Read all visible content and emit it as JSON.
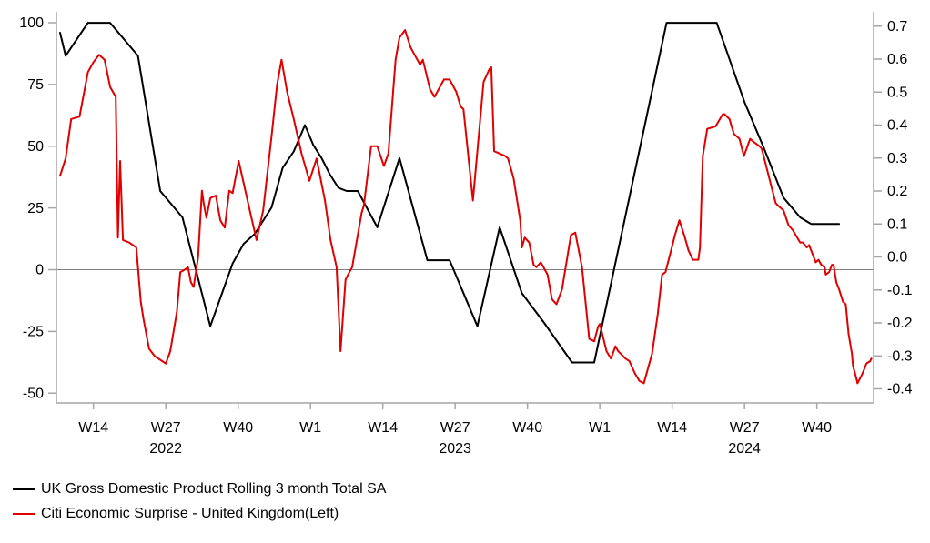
{
  "chart_data": {
    "type": "line",
    "title": "",
    "x_axis": {
      "tick_labels": [
        "W14",
        "W27",
        "W40",
        "W1",
        "W14",
        "W27",
        "W40",
        "W1",
        "W14",
        "W27",
        "W40"
      ],
      "tick_weeks": [
        6,
        19,
        32,
        45,
        58,
        71,
        84,
        97,
        110,
        123,
        136
      ],
      "year_labels": [
        {
          "text": "2022",
          "week": 19
        },
        {
          "text": "2023",
          "week": 71
        },
        {
          "text": "2024",
          "week": 123
        }
      ]
    },
    "left_axis": {
      "tick_values": [
        100,
        75,
        50,
        25,
        0,
        -25,
        -50
      ],
      "range": [
        -54,
        104
      ]
    },
    "right_axis": {
      "tick_labels": [
        "0.7",
        "0.6",
        "0.5",
        "0.4",
        "0.3",
        "0.2",
        "0.1",
        "0.0",
        "-0.1",
        "-0.2",
        "-0.3",
        "-0.4"
      ],
      "range": [
        -0.44,
        0.74
      ]
    },
    "zero_line": true,
    "legend_position": "bottom-left",
    "series": [
      {
        "name": "UK Gross Domestic Product Rolling 3 month Total SA",
        "color": "#000000",
        "axis": "right",
        "points": [
          [
            0,
            0.68
          ],
          [
            1,
            0.61
          ],
          [
            5,
            0.71
          ],
          [
            9,
            0.71
          ],
          [
            12,
            0.65
          ],
          [
            14,
            0.61
          ],
          [
            18,
            0.2
          ],
          [
            22,
            0.12
          ],
          [
            27,
            -0.21
          ],
          [
            31,
            -0.02
          ],
          [
            33,
            0.04
          ],
          [
            35,
            0.07
          ],
          [
            38,
            0.15
          ],
          [
            40,
            0.27
          ],
          [
            42,
            0.32
          ],
          [
            44,
            0.4
          ],
          [
            45.5,
            0.34
          ],
          [
            47,
            0.3
          ],
          [
            48.5,
            0.25
          ],
          [
            50,
            0.21
          ],
          [
            51.5,
            0.2
          ],
          [
            53.5,
            0.2
          ],
          [
            57,
            0.09
          ],
          [
            61,
            0.3
          ],
          [
            66,
            -0.01
          ],
          [
            70,
            -0.01
          ],
          [
            75,
            -0.21
          ],
          [
            79,
            0.09
          ],
          [
            83,
            -0.11
          ],
          [
            87,
            -0.2
          ],
          [
            92,
            -0.32
          ],
          [
            96,
            -0.32
          ],
          [
            109,
            0.71
          ],
          [
            118,
            0.71
          ],
          [
            123,
            0.47
          ],
          [
            126.5,
            0.33
          ],
          [
            130,
            0.18
          ],
          [
            133,
            0.12
          ],
          [
            135,
            0.1
          ],
          [
            140,
            0.1
          ]
        ]
      },
      {
        "name": "Citi Economic Surprise - United Kingdom(Left)",
        "color": "#e00000",
        "axis": "left",
        "points": [
          [
            0,
            38
          ],
          [
            1,
            45
          ],
          [
            2,
            61
          ],
          [
            3.5,
            62
          ],
          [
            5,
            80
          ],
          [
            6,
            84
          ],
          [
            7,
            87
          ],
          [
            8,
            85
          ],
          [
            9,
            74
          ],
          [
            10,
            70
          ],
          [
            10.4,
            13
          ],
          [
            10.8,
            44
          ],
          [
            11.3,
            12
          ],
          [
            12.4,
            11
          ],
          [
            13.7,
            9
          ],
          [
            14.5,
            -13
          ],
          [
            15,
            -20
          ],
          [
            16,
            -32
          ],
          [
            17,
            -35
          ],
          [
            19,
            -38
          ],
          [
            19.8,
            -33
          ],
          [
            21,
            -17
          ],
          [
            21.6,
            -1
          ],
          [
            22.4,
            0
          ],
          [
            23,
            1
          ],
          [
            23.5,
            -5
          ],
          [
            24,
            -7
          ],
          [
            24.8,
            5
          ],
          [
            25.5,
            32
          ],
          [
            25.8,
            27
          ],
          [
            26.3,
            21
          ],
          [
            27,
            29
          ],
          [
            28,
            30
          ],
          [
            28.8,
            20
          ],
          [
            29.6,
            17
          ],
          [
            30.4,
            32
          ],
          [
            31,
            31
          ],
          [
            32.1,
            44
          ],
          [
            34.2,
            23
          ],
          [
            35.3,
            12
          ],
          [
            36.5,
            24
          ],
          [
            38,
            54
          ],
          [
            39,
            75
          ],
          [
            39.8,
            85
          ],
          [
            40.8,
            72
          ],
          [
            42,
            61
          ],
          [
            43.4,
            47
          ],
          [
            44.8,
            36
          ],
          [
            46.1,
            45
          ],
          [
            47.6,
            28
          ],
          [
            48.6,
            12
          ],
          [
            49.7,
            1
          ],
          [
            50.4,
            -33
          ],
          [
            51.3,
            -4
          ],
          [
            52,
            -1
          ],
          [
            52.5,
            1
          ],
          [
            54.2,
            23
          ],
          [
            54.6,
            26
          ],
          [
            55.9,
            50
          ],
          [
            57,
            50
          ],
          [
            58.2,
            42
          ],
          [
            59,
            47
          ],
          [
            60.3,
            85
          ],
          [
            61,
            94
          ],
          [
            62,
            97
          ],
          [
            63,
            90
          ],
          [
            64.7,
            83
          ],
          [
            65.2,
            85
          ],
          [
            66.5,
            73
          ],
          [
            67.3,
            70
          ],
          [
            69,
            77
          ],
          [
            70,
            77
          ],
          [
            71.2,
            72
          ],
          [
            72,
            66
          ],
          [
            72.5,
            65
          ],
          [
            74.2,
            28
          ],
          [
            76.1,
            76
          ],
          [
            77.1,
            81
          ],
          [
            77.5,
            82
          ],
          [
            78,
            48
          ],
          [
            80,
            46
          ],
          [
            80.5,
            45
          ],
          [
            81.5,
            37
          ],
          [
            82.7,
            20
          ],
          [
            83,
            9
          ],
          [
            83.5,
            13
          ],
          [
            84.3,
            11
          ],
          [
            85.1,
            2
          ],
          [
            85.6,
            1
          ],
          [
            86.4,
            3
          ],
          [
            87.6,
            -2
          ],
          [
            88.4,
            -12
          ],
          [
            89.2,
            -14
          ],
          [
            90.2,
            -8
          ],
          [
            91.8,
            14
          ],
          [
            92.6,
            15
          ],
          [
            93.8,
            1
          ],
          [
            95.1,
            -28
          ],
          [
            96,
            -29
          ],
          [
            96.7,
            -23
          ],
          [
            97,
            -22
          ],
          [
            98.2,
            -33
          ],
          [
            99,
            -36
          ],
          [
            99.8,
            -31
          ],
          [
            100.3,
            -33
          ],
          [
            101.6,
            -36
          ],
          [
            102.3,
            -37
          ],
          [
            103.3,
            -42
          ],
          [
            104.1,
            -45
          ],
          [
            104.9,
            -46
          ],
          [
            106.4,
            -34
          ],
          [
            107.4,
            -18
          ],
          [
            108.2,
            -2
          ],
          [
            108.8,
            -1
          ],
          [
            109.6,
            6
          ],
          [
            110.5,
            14
          ],
          [
            111.3,
            20
          ],
          [
            112.3,
            13
          ],
          [
            112.9,
            8
          ],
          [
            113.7,
            4
          ],
          [
            114.7,
            4
          ],
          [
            115,
            9
          ],
          [
            115.5,
            46
          ],
          [
            116.3,
            57
          ],
          [
            117.8,
            58
          ],
          [
            119.1,
            63
          ],
          [
            119.4,
            63
          ],
          [
            120.3,
            61
          ],
          [
            121.1,
            55
          ],
          [
            121.6,
            54
          ],
          [
            122.1,
            53
          ],
          [
            122.9,
            46
          ],
          [
            124,
            53
          ],
          [
            124.5,
            52
          ],
          [
            125.7,
            50
          ],
          [
            126.1,
            49
          ],
          [
            127.8,
            34
          ],
          [
            128.6,
            27
          ],
          [
            129,
            26
          ],
          [
            130,
            24
          ],
          [
            130.9,
            18
          ],
          [
            131.7,
            16
          ],
          [
            132.2,
            14
          ],
          [
            133,
            11
          ],
          [
            133.5,
            11
          ],
          [
            134.2,
            9
          ],
          [
            134.6,
            10
          ],
          [
            135.8,
            3
          ],
          [
            136.3,
            4
          ],
          [
            136.8,
            2
          ],
          [
            137.4,
            1
          ],
          [
            137.6,
            -2
          ],
          [
            138.2,
            -1
          ],
          [
            138.7,
            2
          ],
          [
            139,
            2
          ],
          [
            139.5,
            -5
          ],
          [
            140,
            -8
          ],
          [
            140.7,
            -13
          ],
          [
            141.2,
            -14
          ],
          [
            141.7,
            -26
          ],
          [
            142.3,
            -34
          ],
          [
            142.5,
            -39
          ],
          [
            143.1,
            -44
          ],
          [
            143.3,
            -46
          ],
          [
            144,
            -43
          ],
          [
            144.4,
            -41
          ],
          [
            144.9,
            -38
          ],
          [
            145.6,
            -37
          ],
          [
            145.8,
            -36
          ]
        ]
      }
    ]
  },
  "legend": {
    "items": [
      {
        "label": "UK Gross Domestic Product Rolling 3 month Total SA"
      },
      {
        "label": "Citi Economic Surprise - United Kingdom(Left)"
      }
    ]
  }
}
